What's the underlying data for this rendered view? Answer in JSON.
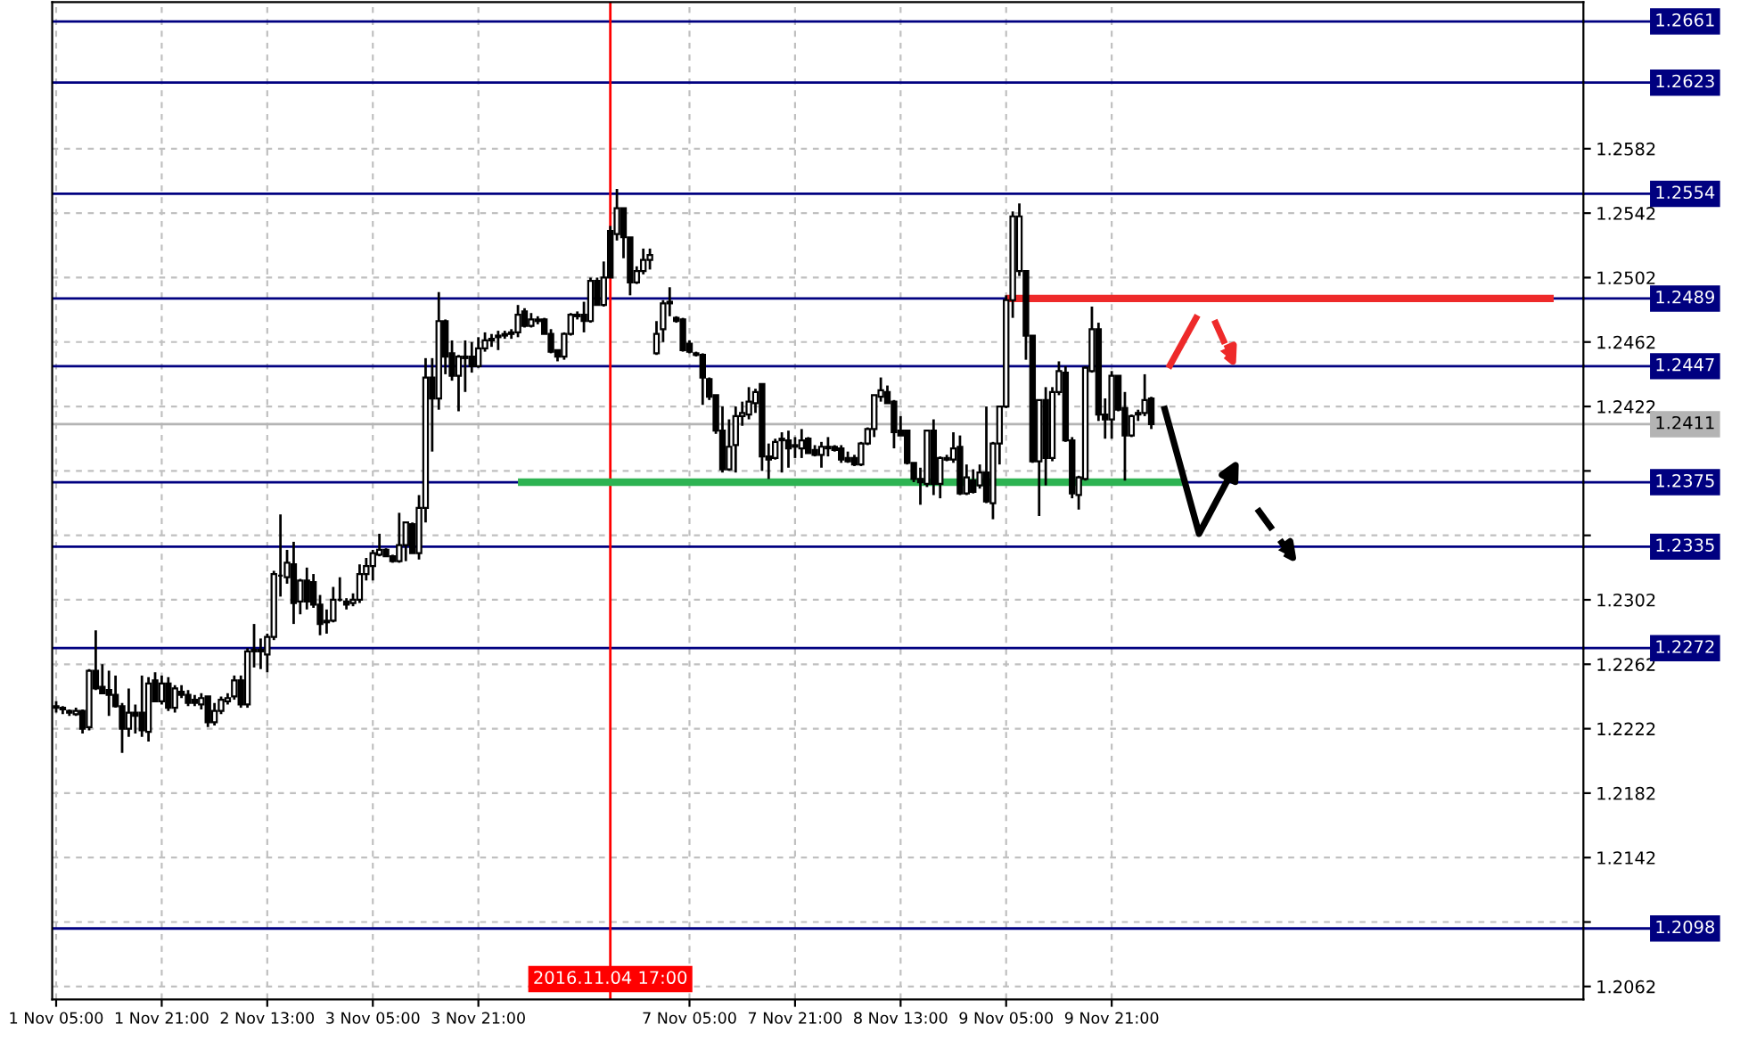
{
  "chart_data": {
    "type": "candlestick",
    "color": "#000000",
    "categories": [
      "1 Nov 05:00",
      null,
      null,
      null,
      null,
      null,
      null,
      null,
      null,
      null,
      null,
      null,
      null,
      null,
      null,
      null,
      "1 Nov 21:00",
      null,
      null,
      null,
      null,
      null,
      null,
      null,
      null,
      null,
      null,
      null,
      null,
      null,
      null,
      null,
      "2 Nov 13:00",
      null,
      null,
      null,
      null,
      null,
      null,
      null,
      null,
      null,
      null,
      null,
      null,
      null,
      null,
      null,
      "3 Nov 05:00",
      null,
      null,
      null,
      null,
      null,
      null,
      null,
      null,
      null,
      null,
      null,
      null,
      null,
      null,
      null,
      "3 Nov 21:00",
      null,
      null,
      null,
      null,
      null,
      null,
      null,
      null,
      null,
      null,
      null,
      null,
      null,
      null,
      null,
      null,
      null,
      null,
      null,
      "2016.11.04 17:00",
      null,
      null,
      null,
      null,
      null,
      null,
      null,
      null,
      null,
      null,
      null,
      "7 Nov 05:00",
      null,
      null,
      null,
      null,
      null,
      null,
      null,
      null,
      null,
      null,
      null,
      null,
      null,
      null,
      null,
      "7 Nov 21:00",
      null,
      null,
      null,
      null,
      null,
      null,
      null,
      null,
      null,
      null,
      null,
      null,
      null,
      null,
      null,
      "8 Nov 13:00",
      null,
      null,
      null,
      null,
      null,
      null,
      null,
      null,
      null,
      null,
      null,
      null,
      null,
      null,
      null,
      "9 Nov 05:00",
      null,
      null,
      null,
      null,
      null,
      null,
      null,
      null,
      null,
      null,
      null,
      null,
      null,
      null,
      null,
      "9 Nov 21:00",
      null,
      null,
      null,
      null,
      null,
      null,
      null,
      null,
      null,
      null,
      null,
      null,
      null,
      null,
      null,
      null,
      null,
      null,
      null,
      null,
      null,
      null,
      null,
      null,
      null,
      null,
      null,
      null,
      null,
      null,
      null,
      null,
      null,
      null,
      null,
      null,
      null,
      null,
      null,
      null,
      null,
      null,
      null,
      null,
      null,
      null,
      null,
      null,
      null,
      null,
      null,
      null,
      null,
      null,
      null,
      null,
      null,
      null,
      null,
      null,
      null,
      null,
      null,
      null,
      null,
      null,
      null,
      null,
      null,
      null,
      null
    ],
    "ohlc": [
      [
        1.2236,
        1.2239,
        1.2232,
        1.2235
      ],
      [
        1.2234,
        1.2236,
        1.2231,
        1.2235
      ],
      [
        1.2233,
        1.2234,
        1.223,
        1.2232
      ],
      [
        1.2231,
        1.2235,
        1.223,
        1.2233
      ],
      [
        1.2233,
        1.2234,
        1.2219,
        1.2222
      ],
      [
        1.2223,
        1.2259,
        1.2221,
        1.2258
      ],
      [
        1.2258,
        1.2283,
        1.2246,
        1.2247
      ],
      [
        1.2248,
        1.2262,
        1.2244,
        1.2244
      ],
      [
        1.2246,
        1.2258,
        1.223,
        1.2243
      ],
      [
        1.2243,
        1.2255,
        1.2235,
        1.2236
      ],
      [
        1.2236,
        1.2238,
        1.2207,
        1.2222
      ],
      [
        1.2222,
        1.2247,
        1.2217,
        1.2232
      ],
      [
        1.2232,
        1.2237,
        1.2219,
        1.223
      ],
      [
        1.2232,
        1.2255,
        1.2217,
        1.2221
      ],
      [
        1.222,
        1.2254,
        1.2214,
        1.225
      ],
      [
        1.2252,
        1.2257,
        1.2239,
        1.2239
      ],
      [
        1.2239,
        1.2255,
        1.2237,
        1.225
      ],
      [
        1.225,
        1.2254,
        1.2233,
        1.2235
      ],
      [
        1.2235,
        1.2249,
        1.2232,
        1.2247
      ],
      [
        1.2245,
        1.2249,
        1.2241,
        1.2243
      ],
      [
        1.2243,
        1.2246,
        1.2236,
        1.2238
      ],
      [
        1.224,
        1.2243,
        1.2236,
        1.2238
      ],
      [
        1.2237,
        1.2244,
        1.2234,
        1.2241
      ],
      [
        1.2242,
        1.2242,
        1.2223,
        1.2226
      ],
      [
        1.2226,
        1.2238,
        1.2224,
        1.2233
      ],
      [
        1.2233,
        1.2242,
        1.2231,
        1.224
      ],
      [
        1.2239,
        1.2244,
        1.2237,
        1.2241
      ],
      [
        1.2242,
        1.2255,
        1.224,
        1.2252
      ],
      [
        1.2252,
        1.2255,
        1.2235,
        1.2237
      ],
      [
        1.2237,
        1.2272,
        1.2235,
        1.227
      ],
      [
        1.227,
        1.2287,
        1.226,
        1.2271
      ],
      [
        1.2271,
        1.2278,
        1.2259,
        1.227
      ],
      [
        1.2268,
        1.2281,
        1.2257,
        1.2279
      ],
      [
        1.2279,
        1.232,
        1.2277,
        1.2318
      ],
      [
        1.2317,
        1.2355,
        1.2304,
        1.2317
      ],
      [
        1.2316,
        1.2333,
        1.2312,
        1.2325
      ],
      [
        1.2324,
        1.2338,
        1.2287,
        1.23
      ],
      [
        1.2301,
        1.2315,
        1.2293,
        1.2314
      ],
      [
        1.2314,
        1.2322,
        1.2296,
        1.2301
      ],
      [
        1.2313,
        1.2318,
        1.2297,
        1.2299
      ],
      [
        1.2299,
        1.2305,
        1.228,
        1.2287
      ],
      [
        1.2288,
        1.2296,
        1.2281,
        1.2289
      ],
      [
        1.2289,
        1.231,
        1.2288,
        1.2302
      ],
      [
        1.2302,
        1.2316,
        1.2301,
        1.2302
      ],
      [
        1.2301,
        1.2303,
        1.2296,
        1.2299
      ],
      [
        1.23,
        1.2306,
        1.2298,
        1.2302
      ],
      [
        1.2302,
        1.2324,
        1.23,
        1.2318
      ],
      [
        1.2318,
        1.2328,
        1.2314,
        1.2323
      ],
      [
        1.2323,
        1.2333,
        1.2314,
        1.2331
      ],
      [
        1.233,
        1.2343,
        1.2329,
        1.2333
      ],
      [
        1.2333,
        1.2334,
        1.2329,
        1.2329
      ],
      [
        1.2329,
        1.233,
        1.2325,
        1.2326
      ],
      [
        1.2326,
        1.2356,
        1.2325,
        1.2336
      ],
      [
        1.2336,
        1.235,
        1.2326,
        1.235
      ],
      [
        1.2349,
        1.235,
        1.2331,
        1.2331
      ],
      [
        1.2331,
        1.2367,
        1.2327,
        1.2359
      ],
      [
        1.2359,
        1.2452,
        1.235,
        1.244
      ],
      [
        1.244,
        1.2452,
        1.2394,
        1.2427
      ],
      [
        1.2427,
        1.2493,
        1.242,
        1.2475
      ],
      [
        1.2475,
        1.2476,
        1.2442,
        1.2453
      ],
      [
        1.2455,
        1.2463,
        1.2438,
        1.2441
      ],
      [
        1.2441,
        1.2454,
        1.2419,
        1.2453
      ],
      [
        1.2452,
        1.2463,
        1.2431,
        1.2453
      ],
      [
        1.2453,
        1.2462,
        1.2443,
        1.2447
      ],
      [
        1.2447,
        1.2465,
        1.2446,
        1.2458
      ],
      [
        1.2458,
        1.2468,
        1.2456,
        1.2463
      ],
      [
        1.2463,
        1.2467,
        1.2459,
        1.2464
      ],
      [
        1.2465,
        1.2469,
        1.2457,
        1.2466
      ],
      [
        1.2466,
        1.2469,
        1.2464,
        1.2467
      ],
      [
        1.2467,
        1.247,
        1.2464,
        1.2468
      ],
      [
        1.2468,
        1.2485,
        1.2465,
        1.2479
      ],
      [
        1.2481,
        1.2483,
        1.2471,
        1.2472
      ],
      [
        1.2472,
        1.248,
        1.2471,
        1.2476
      ],
      [
        1.2476,
        1.2478,
        1.2473,
        1.2475
      ],
      [
        1.2476,
        1.2477,
        1.2467,
        1.2467
      ],
      [
        1.2467,
        1.247,
        1.2455,
        1.2456
      ],
      [
        1.2457,
        1.2457,
        1.245,
        1.2453
      ],
      [
        1.2453,
        1.2468,
        1.2451,
        1.2467
      ],
      [
        1.2467,
        1.248,
        1.2466,
        1.2479
      ],
      [
        1.2479,
        1.2481,
        1.2476,
        1.2478
      ],
      [
        1.2479,
        1.2487,
        1.2468,
        1.2475
      ],
      [
        1.2475,
        1.2502,
        1.2474,
        1.25
      ],
      [
        1.25,
        1.2502,
        1.2485,
        1.2485
      ],
      [
        1.2485,
        1.2512,
        1.2484,
        1.2502
      ],
      [
        1.2531,
        1.2534,
        1.2502,
        1.2502
      ],
      [
        1.2529,
        1.2557,
        1.2525,
        1.2545
      ],
      [
        1.2545,
        1.2545,
        1.2514,
        1.2527
      ],
      [
        1.2527,
        1.2527,
        1.2491,
        1.2499
      ],
      [
        1.2499,
        1.2509,
        1.2498,
        1.2506
      ],
      [
        1.2506,
        1.252,
        1.2504,
        1.2513
      ],
      [
        1.2513,
        1.252,
        1.2507,
        1.2516
      ],
      [
        1.2455,
        1.2475,
        1.2454,
        1.2467
      ],
      [
        1.247,
        1.2488,
        1.2462,
        1.2486
      ],
      [
        1.2486,
        1.2496,
        1.2478,
        1.2487
      ],
      [
        1.2477,
        1.2478,
        1.2474,
        1.2475
      ],
      [
        1.2476,
        1.2477,
        1.2456,
        1.2457
      ],
      [
        1.2461,
        1.2463,
        1.2455,
        1.2456
      ],
      [
        1.2455,
        1.2456,
        1.2453,
        1.2454
      ],
      [
        1.2454,
        1.2455,
        1.2423,
        1.244
      ],
      [
        1.2439,
        1.244,
        1.2426,
        1.2428
      ],
      [
        1.2429,
        1.2429,
        1.2405,
        1.2407
      ],
      [
        1.2407,
        1.2422,
        1.2381,
        1.2383
      ],
      [
        1.2383,
        1.2414,
        1.2382,
        1.2397
      ],
      [
        1.2398,
        1.2422,
        1.2381,
        1.2416
      ],
      [
        1.2416,
        1.2425,
        1.241,
        1.2418
      ],
      [
        1.2417,
        1.2434,
        1.2414,
        1.2425
      ],
      [
        1.2424,
        1.2433,
        1.2418,
        1.2431
      ],
      [
        1.2436,
        1.2436,
        1.2382,
        1.2391
      ],
      [
        1.2391,
        1.2399,
        1.2377,
        1.2389
      ],
      [
        1.239,
        1.2402,
        1.2389,
        1.24
      ],
      [
        1.2401,
        1.2406,
        1.2381,
        1.2402
      ],
      [
        1.2401,
        1.2407,
        1.2384,
        1.2396
      ],
      [
        1.2398,
        1.2403,
        1.239,
        1.2397
      ],
      [
        1.2396,
        1.2408,
        1.239,
        1.2401
      ],
      [
        1.2402,
        1.2403,
        1.2393,
        1.2393
      ],
      [
        1.2395,
        1.2398,
        1.2391,
        1.2392
      ],
      [
        1.2392,
        1.24,
        1.2384,
        1.2397
      ],
      [
        1.2396,
        1.2403,
        1.2391,
        1.2397
      ],
      [
        1.2397,
        1.2398,
        1.2394,
        1.2395
      ],
      [
        1.2396,
        1.2398,
        1.2387,
        1.2389
      ],
      [
        1.239,
        1.2394,
        1.2387,
        1.2388
      ],
      [
        1.239,
        1.2392,
        1.2385,
        1.2386
      ],
      [
        1.2386,
        1.24,
        1.2385,
        1.2399
      ],
      [
        1.2399,
        1.2409,
        1.2398,
        1.2408
      ],
      [
        1.2408,
        1.2429,
        1.2403,
        1.2429
      ],
      [
        1.2428,
        1.244,
        1.2425,
        1.2432
      ],
      [
        1.2431,
        1.2435,
        1.2424,
        1.2424
      ],
      [
        1.2425,
        1.2426,
        1.2396,
        1.2406
      ],
      [
        1.2407,
        1.2416,
        1.2404,
        1.2404
      ],
      [
        1.2407,
        1.2407,
        1.2386,
        1.2387
      ],
      [
        1.2387,
        1.2387,
        1.2375,
        1.2377
      ],
      [
        1.2377,
        1.2384,
        1.2361,
        1.2375
      ],
      [
        1.2374,
        1.2407,
        1.2372,
        1.2407
      ],
      [
        1.2407,
        1.2414,
        1.2367,
        1.2374
      ],
      [
        1.2374,
        1.2391,
        1.2365,
        1.239
      ],
      [
        1.239,
        1.2392,
        1.2388,
        1.2389
      ],
      [
        1.2389,
        1.2406,
        1.2387,
        1.2396
      ],
      [
        1.2397,
        1.2404,
        1.2367,
        1.2368
      ],
      [
        1.2368,
        1.2386,
        1.2367,
        1.2378
      ],
      [
        1.2376,
        1.2383,
        1.2368,
        1.2369
      ],
      [
        1.2373,
        1.2386,
        1.2371,
        1.2381
      ],
      [
        1.2381,
        1.2422,
        1.2362,
        1.2363
      ],
      [
        1.2362,
        1.24,
        1.2352,
        1.2399
      ],
      [
        1.2399,
        1.2422,
        1.2386,
        1.2422
      ],
      [
        1.2422,
        1.2491,
        1.2421,
        1.2488
      ],
      [
        1.2488,
        1.2543,
        1.2477,
        1.254
      ],
      [
        1.2506,
        1.2548,
        1.2503,
        1.254
      ],
      [
        1.2506,
        1.2506,
        1.2451,
        1.2466
      ],
      [
        1.2466,
        1.2466,
        1.2387,
        1.2388
      ],
      [
        1.2388,
        1.2426,
        1.2354,
        1.2426
      ],
      [
        1.2426,
        1.2434,
        1.2373,
        1.239
      ],
      [
        1.239,
        1.2434,
        1.2388,
        1.2431
      ],
      [
        1.2431,
        1.245,
        1.2429,
        1.2444
      ],
      [
        1.2443,
        1.2447,
        1.24,
        1.2401
      ],
      [
        1.2401,
        1.2403,
        1.2365,
        1.2368
      ],
      [
        1.2367,
        1.2379,
        1.2358,
        1.2378
      ],
      [
        1.2377,
        1.2447,
        1.2376,
        1.2446
      ],
      [
        1.2444,
        1.2484,
        1.2443,
        1.247
      ],
      [
        1.247,
        1.2474,
        1.2413,
        1.2417
      ],
      [
        1.2417,
        1.2427,
        1.2402,
        1.2414
      ],
      [
        1.2414,
        1.2444,
        1.2402,
        1.2441
      ],
      [
        1.2441,
        1.2441,
        1.2419,
        1.242
      ],
      [
        1.2421,
        1.2431,
        1.2376,
        1.2404
      ],
      [
        1.2404,
        1.2417,
        1.2403,
        1.2416
      ],
      [
        1.2417,
        1.242,
        1.2413,
        1.2418
      ],
      [
        1.2418,
        1.2442,
        1.2416,
        1.2426
      ],
      [
        1.2427,
        1.2428,
        1.2408,
        1.2411
      ],
      null,
      null,
      null,
      null,
      null,
      null,
      null,
      null,
      null,
      null,
      null,
      null,
      null,
      null,
      null,
      null,
      null,
      null,
      null,
      null,
      null,
      null,
      null,
      null,
      null,
      null,
      null,
      null,
      null,
      null,
      null,
      null,
      null,
      null,
      null,
      null,
      null,
      null,
      null,
      null,
      null,
      null,
      null,
      null,
      null,
      null,
      null,
      null,
      null,
      null,
      null,
      null,
      null,
      null,
      null,
      null,
      null,
      null,
      null,
      null,
      null,
      null,
      null,
      null,
      null
    ],
    "series": [
      {
        "type": "line",
        "color": "#ee2a2a",
        "values": [
          null,
          null,
          null,
          null,
          null,
          null,
          null,
          null,
          null,
          null,
          null,
          null,
          null,
          null,
          null,
          null,
          null,
          null,
          null,
          null,
          null,
          null,
          null,
          null,
          null,
          null,
          null,
          null,
          null,
          null,
          null,
          null,
          null,
          null,
          null,
          null,
          null,
          null,
          null,
          null,
          null,
          null,
          null,
          null,
          null,
          null,
          null,
          null,
          null,
          null,
          null,
          null,
          null,
          null,
          null,
          null,
          null,
          null,
          null,
          null,
          null,
          null,
          null,
          null,
          null,
          null,
          null,
          null,
          null,
          null,
          null,
          null,
          null,
          null,
          null,
          null,
          null,
          null,
          null,
          null,
          null,
          null,
          null,
          null,
          null,
          null,
          null,
          null,
          null,
          null,
          null,
          null,
          null,
          null,
          null,
          null,
          null,
          null,
          null,
          null,
          null,
          null,
          null,
          null,
          null,
          null,
          null,
          null,
          null,
          null,
          null,
          null,
          null,
          null,
          null,
          null,
          null,
          null,
          null,
          null,
          null,
          null,
          null,
          null,
          null,
          null,
          null,
          null,
          null,
          null,
          null,
          null,
          null,
          null,
          null,
          null,
          null,
          null,
          null,
          null,
          null,
          null,
          null,
          null,
          1.2489,
          null,
          null,
          null,
          null,
          null,
          null,
          null,
          null,
          null,
          null,
          null,
          null,
          null,
          null,
          null,
          null,
          null,
          null,
          null,
          null,
          null,
          null,
          null,
          null,
          null,
          null,
          null,
          null,
          null,
          null,
          null,
          null,
          null,
          null,
          null,
          null,
          null,
          null,
          null,
          null,
          null,
          null,
          null,
          null,
          null,
          null,
          null,
          null,
          null,
          null,
          null,
          null,
          null,
          null,
          null,
          null,
          null,
          null,
          null,
          null,
          null,
          null,
          null,
          null,
          null,
          null,
          null,
          null,
          null,
          null,
          null,
          null,
          null,
          null,
          null,
          null,
          null,
          null,
          null,
          null,
          null,
          null,
          1.2489,
          null,
          null,
          null,
          null
        ]
      },
      {
        "type": "line",
        "color": "#2db352",
        "values": [
          null,
          null,
          null,
          null,
          null,
          null,
          null,
          null,
          null,
          null,
          null,
          null,
          null,
          null,
          null,
          null,
          null,
          null,
          null,
          null,
          null,
          null,
          null,
          null,
          null,
          null,
          null,
          null,
          null,
          null,
          null,
          null,
          null,
          null,
          null,
          null,
          null,
          null,
          null,
          null,
          null,
          null,
          null,
          null,
          null,
          null,
          null,
          null,
          null,
          null,
          null,
          null,
          null,
          null,
          null,
          null,
          null,
          null,
          null,
          null,
          null,
          null,
          null,
          null,
          null,
          null,
          null,
          null,
          null,
          null,
          1.2375,
          null,
          null,
          null,
          null,
          null,
          null,
          null,
          null,
          null,
          null,
          null,
          null,
          null,
          null,
          null,
          null,
          null,
          null,
          null,
          null,
          null,
          null,
          null,
          null,
          null,
          null,
          null,
          null,
          null,
          null,
          null,
          null,
          null,
          null,
          null,
          null,
          null,
          null,
          null,
          null,
          null,
          null,
          null,
          null,
          null,
          null,
          null,
          null,
          null,
          null,
          null,
          null,
          null,
          null,
          null,
          null,
          null,
          null,
          null,
          null,
          null,
          null,
          null,
          null,
          null,
          null,
          null,
          null,
          null,
          null,
          null,
          null,
          null,
          null,
          null,
          null,
          null,
          null,
          null,
          null,
          null,
          null,
          null,
          null,
          null,
          null,
          null,
          null,
          null,
          null,
          null,
          null,
          null,
          null,
          null,
          null,
          null,
          null,
          null,
          null,
          1.2375,
          null,
          null,
          null,
          null,
          null,
          null,
          null,
          null,
          null,
          null,
          null,
          null,
          null,
          null,
          null,
          null,
          null,
          null,
          null,
          null,
          null,
          null,
          null,
          null,
          null,
          null,
          null,
          null,
          null,
          null,
          null,
          null,
          null,
          null,
          null,
          null,
          null,
          null,
          null,
          null,
          null,
          null,
          null,
          null,
          null,
          null,
          null,
          null,
          null,
          null,
          null,
          null,
          null,
          null,
          null,
          null,
          null,
          null,
          null,
          null
        ]
      }
    ],
    "ref_lines": [
      {
        "axis": "y",
        "value": 1.2661,
        "label": "1.2661",
        "color": "#000080"
      },
      {
        "axis": "y",
        "value": 1.2623,
        "label": "1.2623",
        "color": "#000080"
      },
      {
        "axis": "y",
        "value": 1.2554,
        "label": "1.2554",
        "color": "#000080"
      },
      {
        "axis": "y",
        "value": 1.2489,
        "label": "1.2489",
        "color": "#000080"
      },
      {
        "axis": "y",
        "value": 1.2447,
        "label": "1.2447",
        "color": "#000080"
      },
      {
        "axis": "y",
        "value": 1.2411,
        "label": "1.2411",
        "color": "#b4b4b4"
      },
      {
        "axis": "y",
        "value": 1.2375,
        "label": "1.2375",
        "color": "#000080"
      },
      {
        "axis": "y",
        "value": 1.2335,
        "label": "1.2335",
        "color": "#000080"
      },
      {
        "axis": "y",
        "value": 1.2272,
        "label": "1.2272",
        "color": "#000080"
      },
      {
        "axis": "y",
        "value": 1.2098,
        "label": "1.2098",
        "color": "#000080"
      },
      {
        "axis": "x",
        "value": "2016.11.04 17:00",
        "color": "#ff0000"
      }
    ],
    "ylim": [
      1.2054,
      1.2673
    ],
    "yticks": [
      1.2582,
      1.2542,
      1.2502,
      1.2462,
      1.2422,
      {
        "value": 1.2382,
        "label": null
      },
      {
        "value": 1.2342,
        "label": null
      },
      1.2302,
      1.2262,
      1.2222,
      1.2182,
      1.2142,
      {
        "value": 1.2102,
        "label": null
      },
      1.2062
    ],
    "grid": true
  }
}
